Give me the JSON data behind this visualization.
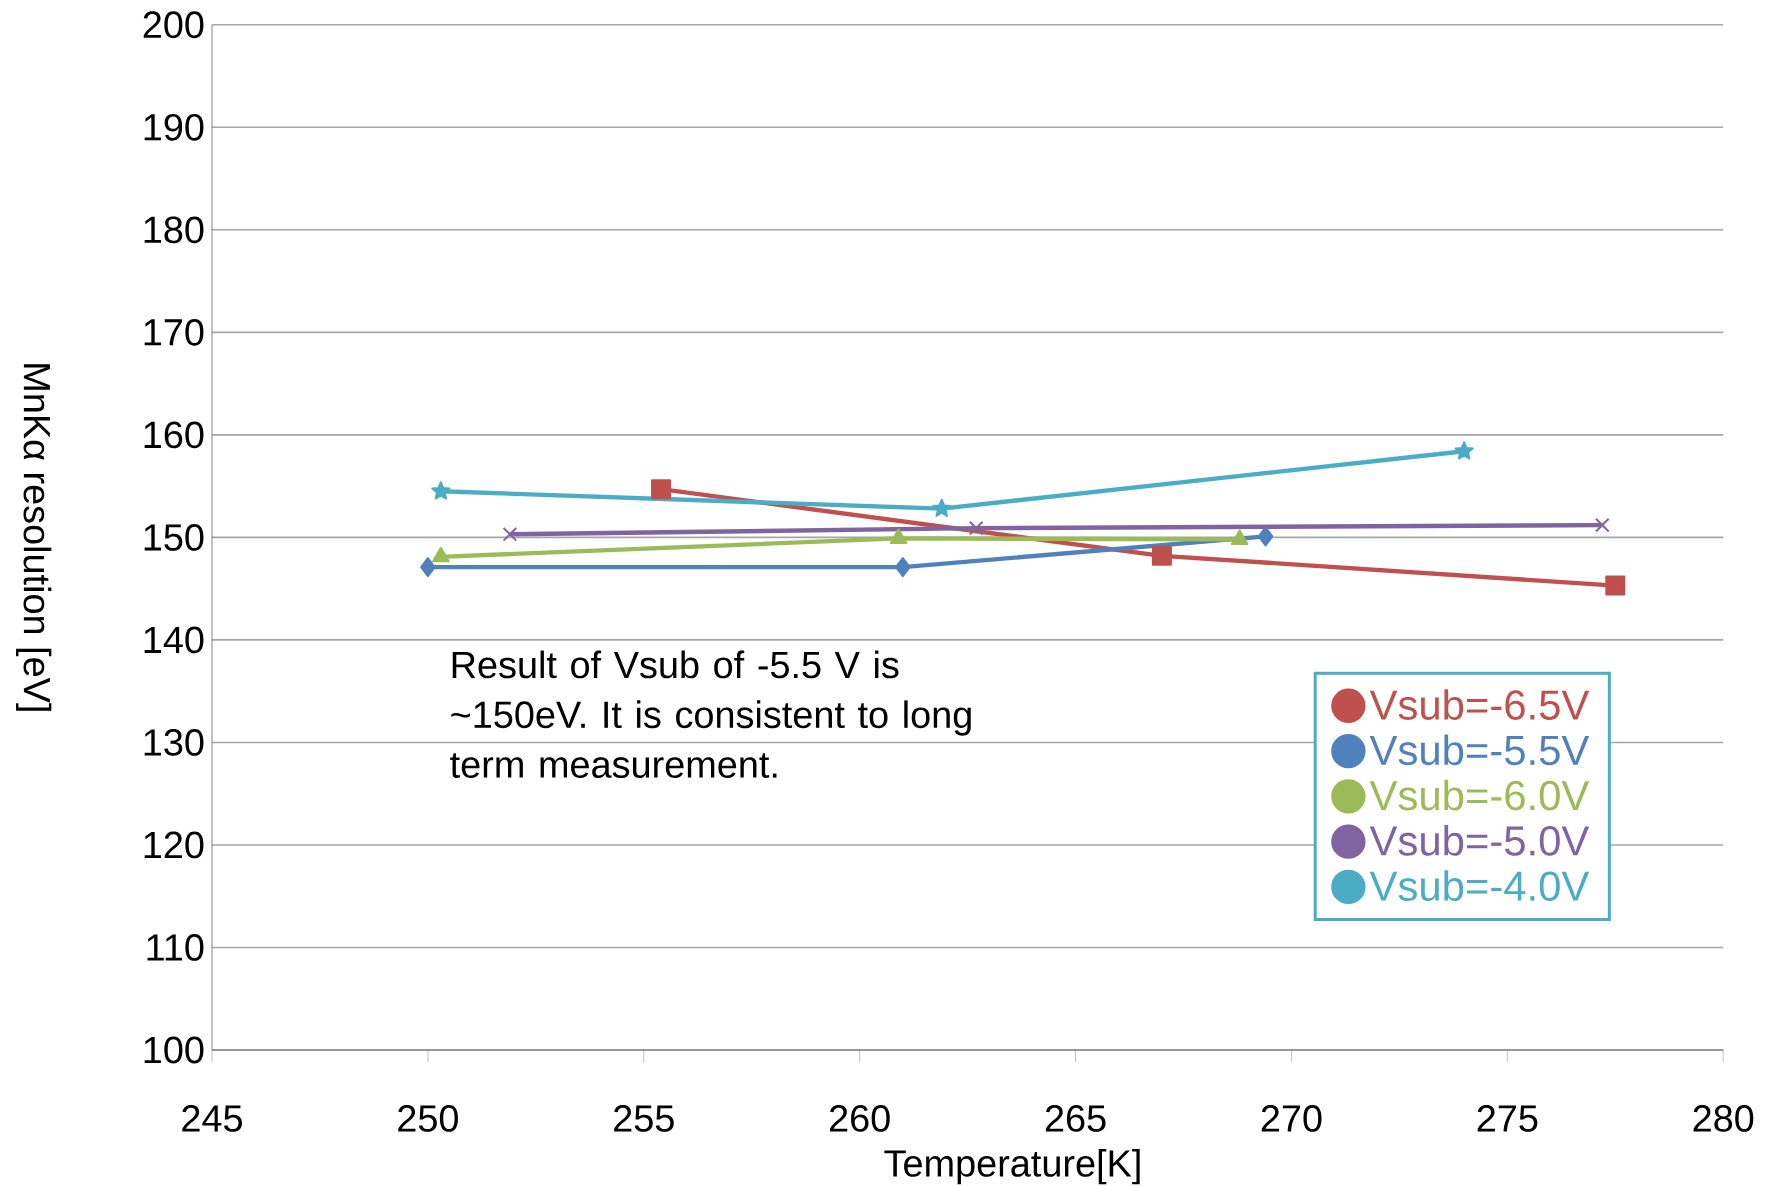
{
  "chart_data": {
    "type": "line",
    "xlabel": "Temperature[K]",
    "ylabel": "MnKα resolution [eV]",
    "xlim": [
      245,
      280
    ],
    "xticks": [
      245,
      250,
      255,
      260,
      265,
      270,
      275,
      280
    ],
    "ylim": [
      100,
      200
    ],
    "yticks": [
      100,
      110,
      120,
      130,
      140,
      150,
      160,
      170,
      180,
      190,
      200
    ],
    "grid": "y",
    "legend": "bottom right",
    "line_style": "solid",
    "annotations": [
      "Result of Vsub of -5.5 V is ~150eV. It is consistent to long term measurement."
    ],
    "series": [
      {
        "name": "Vsub=-6.5V",
        "color": "#c0504d",
        "marker": "square",
        "x": [
          255.4,
          267.0,
          277.5
        ],
        "values": [
          154.7,
          148.2,
          145.3
        ]
      },
      {
        "name": "Vsub=-5.5V",
        "color": "#4f81bd",
        "marker": "diamond",
        "x": [
          250.0,
          261.0,
          269.4
        ],
        "values": [
          147.1,
          147.1,
          150.1
        ]
      },
      {
        "name": "Vsub=-6.0V",
        "color": "#9bbb59",
        "marker": "triangle",
        "x": [
          250.3,
          260.9,
          268.8
        ],
        "values": [
          148.1,
          149.9,
          149.8
        ]
      },
      {
        "name": "Vsub=-5.0V",
        "color": "#8064a2",
        "marker": "cross",
        "x": [
          251.9,
          262.7,
          277.2
        ],
        "values": [
          150.3,
          150.9,
          151.2
        ]
      },
      {
        "name": "Vsub=-4.0V",
        "color": "#4bacc6",
        "marker": "star",
        "x": [
          250.3,
          261.9,
          274.0
        ],
        "values": [
          154.5,
          152.8,
          158.4
        ]
      }
    ]
  }
}
